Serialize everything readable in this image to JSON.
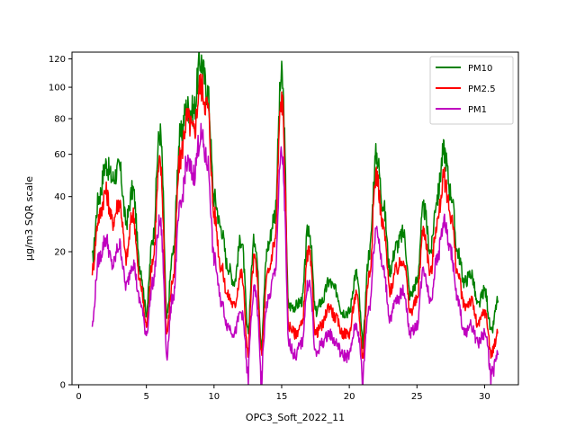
{
  "chart_data": {
    "type": "line",
    "xlabel": "OPC3_Soft_2022_11",
    "ylabel": "µg/m3 SQR scale",
    "yscale": "sqrt",
    "xlim": [
      -0.5,
      32.5
    ],
    "ylim": [
      0,
      125
    ],
    "x_ticks": [
      0,
      5,
      10,
      15,
      20,
      25,
      30
    ],
    "y_ticks": [
      0,
      20,
      40,
      60,
      80,
      100,
      120
    ],
    "grid": false,
    "legend": "top-right",
    "series": [
      {
        "name": "PM10",
        "color": "#008000",
        "x": [
          1,
          1.5,
          2,
          2.5,
          3,
          3.5,
          4,
          4.5,
          5,
          5.5,
          6,
          6.5,
          7,
          7.5,
          8,
          8.5,
          9,
          9.5,
          10,
          10.5,
          11,
          11.5,
          12,
          12.5,
          13,
          13.5,
          14,
          14.5,
          15,
          15.5,
          16,
          16.5,
          17,
          17.5,
          18,
          18.5,
          19,
          19.5,
          20,
          20.5,
          21,
          21.5,
          22,
          22.5,
          23,
          23.5,
          24,
          24.5,
          25,
          25.5,
          26,
          26.5,
          27,
          27.5,
          28,
          28.5,
          29,
          29.5,
          30,
          30.5,
          31
        ],
        "values": [
          18,
          40,
          55,
          48,
          53,
          30,
          43,
          16,
          6,
          25,
          72,
          5,
          20,
          70,
          87,
          85,
          119,
          98,
          40,
          28,
          16,
          12,
          24,
          3,
          24,
          2,
          22,
          33,
          107,
          7,
          7,
          8,
          28,
          6,
          8,
          12,
          10,
          6,
          6,
          14,
          2,
          20,
          60,
          37,
          15,
          22,
          26,
          9,
          12,
          35,
          20,
          40,
          62,
          42,
          20,
          12,
          14,
          7,
          10,
          3,
          8
        ]
      },
      {
        "name": "PM2.5",
        "color": "#ff0000",
        "x": [
          1,
          1.5,
          2,
          2.5,
          3,
          3.5,
          4,
          4.5,
          5,
          5.5,
          6,
          6.5,
          7,
          7.5,
          8,
          8.5,
          9,
          9.5,
          10,
          10.5,
          11,
          11.5,
          12,
          12.5,
          13,
          13.5,
          14,
          14.5,
          15,
          15.5,
          16,
          16.5,
          17,
          17.5,
          18,
          18.5,
          19,
          19.5,
          20,
          20.5,
          21,
          21.5,
          22,
          22.5,
          23,
          23.5,
          24,
          24.5,
          25,
          25.5,
          26,
          26.5,
          27,
          27.5,
          28,
          28.5,
          29,
          29.5,
          30,
          30.5,
          31
        ],
        "values": [
          15,
          32,
          42,
          30,
          38,
          18,
          33,
          12,
          4,
          18,
          55,
          3,
          13,
          58,
          80,
          72,
          102,
          88,
          33,
          16,
          9,
          7,
          14,
          1,
          18,
          1,
          14,
          23,
          92,
          4,
          3,
          4,
          20,
          3,
          4,
          7,
          5,
          3,
          3,
          9,
          1,
          14,
          50,
          28,
          10,
          15,
          18,
          6,
          8,
          27,
          14,
          30,
          48,
          33,
          14,
          7,
          8,
          4,
          6,
          1,
          3
        ]
      },
      {
        "name": "PM1",
        "color": "#bf00bf",
        "x": [
          1,
          1.5,
          2,
          2.5,
          3,
          3.5,
          4,
          4.5,
          5,
          5.5,
          6,
          6.5,
          7,
          7.5,
          8,
          8.5,
          9,
          9.5,
          10,
          10.5,
          11,
          11.5,
          12,
          12.5,
          13,
          13.5,
          14,
          14.5,
          15,
          15.5,
          16,
          16.5,
          17,
          17.5,
          18,
          18.5,
          19,
          19.5,
          20,
          20.5,
          21,
          21.5,
          22,
          22.5,
          23,
          23.5,
          24,
          24.5,
          25,
          25.5,
          26,
          26.5,
          27,
          27.5,
          28,
          28.5,
          29,
          29.5,
          30,
          30.5,
          31
        ],
        "values": [
          4,
          18,
          24,
          16,
          22,
          11,
          17,
          8,
          3,
          12,
          30,
          1,
          9,
          35,
          55,
          50,
          70,
          56,
          18,
          8,
          4,
          3,
          6,
          0,
          10,
          0,
          8,
          14,
          60,
          2,
          1,
          2,
          12,
          1,
          2,
          3,
          2,
          1,
          1,
          4,
          0,
          7,
          28,
          15,
          5,
          8,
          10,
          3,
          4,
          15,
          8,
          18,
          30,
          20,
          8,
          3,
          4,
          2,
          3,
          0,
          1
        ]
      }
    ]
  }
}
